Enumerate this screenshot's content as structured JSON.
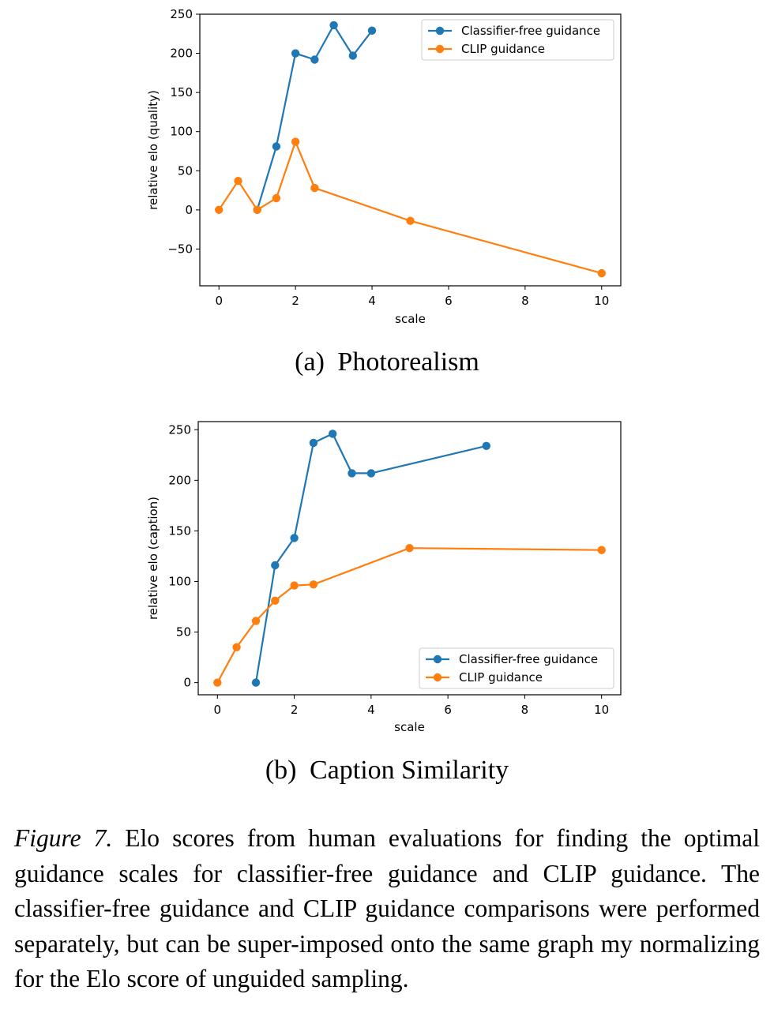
{
  "chart_data": [
    {
      "type": "line",
      "title": "",
      "xlabel": "scale",
      "ylabel": "relative elo (quality)",
      "xlim": [
        -0.5,
        10.5
      ],
      "ylim": [
        -97,
        250
      ],
      "xticks": [
        0,
        2,
        4,
        6,
        8,
        10
      ],
      "xtick_labels": [
        "0",
        "2",
        "4",
        "6",
        "8",
        "10"
      ],
      "yticks": [
        -50,
        0,
        50,
        100,
        150,
        200,
        250
      ],
      "ytick_labels": [
        "−50",
        "0",
        "50",
        "100",
        "150",
        "200",
        "250"
      ],
      "legend_position": "top-right",
      "series": [
        {
          "name": "Classifier-free guidance",
          "color": "#1f77b4",
          "x": [
            1,
            1.5,
            2,
            2.5,
            3,
            3.5,
            4
          ],
          "y": [
            0,
            81,
            200,
            192,
            236,
            197,
            229
          ]
        },
        {
          "name": "CLIP guidance",
          "color": "#ff7f0e",
          "x": [
            0,
            0.5,
            1,
            1.5,
            2,
            2.5,
            5,
            10
          ],
          "y": [
            0,
            37,
            0,
            15,
            87,
            28,
            -14,
            -81
          ]
        }
      ]
    },
    {
      "type": "line",
      "title": "",
      "xlabel": "scale",
      "ylabel": "relative elo (caption)",
      "xlim": [
        -0.5,
        10.5
      ],
      "ylim": [
        -12,
        258
      ],
      "xticks": [
        0,
        2,
        4,
        6,
        8,
        10
      ],
      "xtick_labels": [
        "0",
        "2",
        "4",
        "6",
        "8",
        "10"
      ],
      "yticks": [
        0,
        50,
        100,
        150,
        200,
        250
      ],
      "ytick_labels": [
        "0",
        "50",
        "100",
        "150",
        "200",
        "250"
      ],
      "legend_position": "bottom-right",
      "series": [
        {
          "name": "Classifier-free guidance",
          "color": "#1f77b4",
          "x": [
            1,
            1.5,
            2,
            2.5,
            3,
            3.5,
            4,
            7
          ],
          "y": [
            0,
            116,
            143,
            237,
            246,
            207,
            207,
            234
          ]
        },
        {
          "name": "CLIP guidance",
          "color": "#ff7f0e",
          "x": [
            0,
            0.5,
            1,
            1.5,
            2,
            2.5,
            5,
            10
          ],
          "y": [
            0,
            35,
            61,
            81,
            96,
            97,
            133,
            131
          ]
        }
      ]
    }
  ],
  "subcaptions": [
    {
      "label": "(a)",
      "text": "Photorealism"
    },
    {
      "label": "(b)",
      "text": "Caption Similarity"
    }
  ],
  "caption": {
    "label": "Figure 7.",
    "text": "Elo scores from human evaluations for finding the optimal guidance scales for classifier-free guidance and CLIP guidance. The classifier-free guidance and CLIP guidance comparisons were performed separately, but can be super-imposed onto the same graph my normalizing for the Elo score of unguided sampling."
  }
}
